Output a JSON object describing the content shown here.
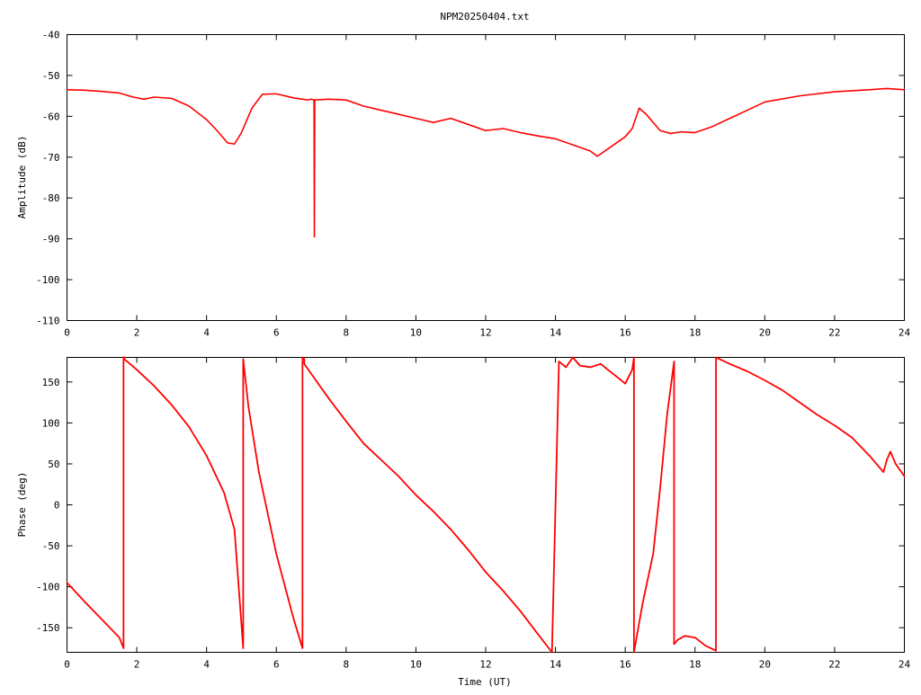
{
  "title": "NPM20250404.txt",
  "colors": {
    "trace": "#ff0000",
    "axes": "#000000",
    "background": "#ffffff"
  },
  "chart_data": [
    {
      "type": "line",
      "panel": "amplitude",
      "xlabel": "",
      "ylabel": "Amplitude (dB)",
      "xlim": [
        0,
        24
      ],
      "ylim": [
        -110,
        -40
      ],
      "x_ticks": [
        "0",
        "2",
        "4",
        "6",
        "8",
        "10",
        "12",
        "14",
        "16",
        "18",
        "20",
        "22",
        "24"
      ],
      "y_ticks": [
        "-40",
        "-50",
        "-60",
        "-70",
        "-80",
        "-90",
        "-100",
        "-110"
      ],
      "grid": false,
      "legend": "none",
      "series": [
        {
          "x": [
            0,
            0.5,
            1,
            1.5,
            1.9,
            2.2,
            2.5,
            3,
            3.5,
            4,
            4.3,
            4.6,
            4.8,
            5.0,
            5.3,
            5.6,
            6.0,
            6.5,
            6.9,
            7.0,
            7.08,
            7.09,
            7.1,
            7.5,
            8,
            8.5,
            9,
            9.5,
            10,
            10.5,
            11,
            11.5,
            12,
            12.5,
            13,
            13.5,
            14,
            14.5,
            15,
            15.2,
            15.5,
            16,
            16.2,
            16.4,
            16.6,
            17,
            17.3,
            17.6,
            18,
            18.5,
            19,
            19.5,
            20,
            21,
            22,
            23,
            23.5,
            24
          ],
          "y": [
            -53.5,
            -53.6,
            -53.9,
            -54.3,
            -55.3,
            -55.8,
            -55.3,
            -55.6,
            -57.5,
            -60.8,
            -63.5,
            -66.5,
            -66.8,
            -64.0,
            -58.0,
            -54.6,
            -54.5,
            -55.5,
            -56.0,
            -55.8,
            -56.0,
            -89.5,
            -56.0,
            -55.8,
            -56.0,
            -57.5,
            -58.5,
            -59.5,
            -60.5,
            -61.5,
            -60.5,
            -62.0,
            -63.5,
            -63.0,
            -64.0,
            -64.8,
            -65.5,
            -67.0,
            -68.5,
            -69.8,
            -68.0,
            -65.0,
            -63.0,
            -58.0,
            -59.5,
            -63.5,
            -64.2,
            -63.8,
            -64.0,
            -62.5,
            -60.5,
            -58.5,
            -56.5,
            -55.0,
            -54.0,
            -53.5,
            -53.2,
            -53.5
          ]
        }
      ]
    },
    {
      "type": "line",
      "panel": "phase",
      "xlabel": "Time (UT)",
      "ylabel": "Phase (deg)",
      "xlim": [
        0,
        24
      ],
      "ylim": [
        -180,
        180
      ],
      "x_ticks": [
        "0",
        "2",
        "4",
        "6",
        "8",
        "10",
        "12",
        "14",
        "16",
        "18",
        "20",
        "22",
        "24"
      ],
      "y_ticks": [
        "150",
        "100",
        "50",
        "0",
        "-50",
        "-100",
        "-150"
      ],
      "grid": false,
      "legend": "none",
      "series": [
        {
          "x": [
            0,
            0.5,
            1,
            1.5,
            1.62,
            1.62,
            1.64,
            1.64,
            2,
            2.5,
            3,
            3.5,
            4,
            4.5,
            4.8,
            5.05,
            5.05,
            5.2,
            5.5,
            6,
            6.5,
            6.75,
            6.75,
            6.8,
            6.8,
            7,
            7.5,
            8,
            8.5,
            9,
            9.5,
            10,
            10.5,
            11,
            11.5,
            12,
            12.5,
            13,
            13.5,
            13.9,
            14.1,
            14.3,
            14.5,
            14.7,
            15,
            15.3,
            15.5,
            15.8,
            16.0,
            16.2,
            16.25,
            16.25,
            16.5,
            16.8,
            17.0,
            17.2,
            17.4,
            17.4,
            17.5,
            17.7,
            18.0,
            18.3,
            18.6,
            18.6,
            18.8,
            19.0,
            19.5,
            20,
            20.5,
            21,
            21.5,
            22,
            22.5,
            23,
            23.4,
            23.5,
            23.6,
            23.75,
            24
          ],
          "y": [
            -95,
            -118,
            -140,
            -162,
            -175,
            180,
            180,
            178,
            165,
            145,
            122,
            95,
            60,
            15,
            -30,
            -175,
            178,
            120,
            40,
            -60,
            -140,
            -175,
            180,
            178,
            172,
            160,
            130,
            102,
            75,
            55,
            35,
            12,
            -8,
            -30,
            -55,
            -82,
            -105,
            -130,
            -158,
            -180,
            175,
            168,
            180,
            170,
            168,
            172,
            165,
            155,
            148,
            165,
            180,
            -180,
            -120,
            -60,
            20,
            110,
            175,
            -170,
            -165,
            -160,
            -162,
            -172,
            -178,
            180,
            176,
            172,
            163,
            152,
            140,
            125,
            110,
            97,
            82,
            60,
            40,
            55,
            65,
            50,
            35
          ]
        }
      ]
    }
  ]
}
